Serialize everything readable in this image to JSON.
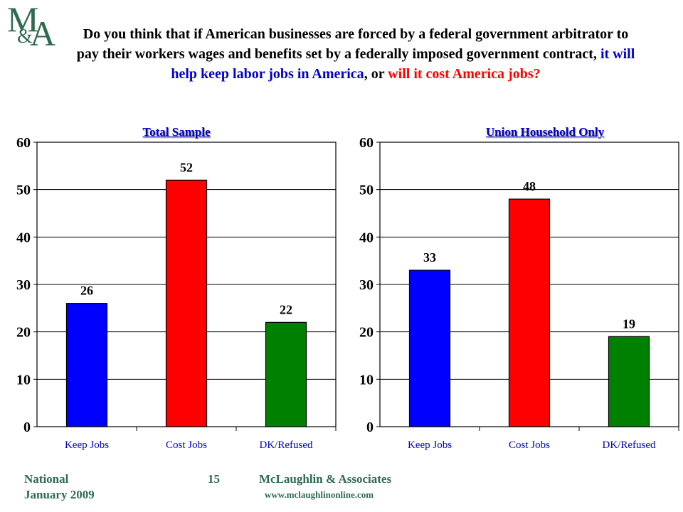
{
  "logo": {
    "m": "M",
    "amp": "&",
    "a": "A"
  },
  "question": {
    "part1": "Do you think that if American businesses are forced by a federal government arbitrator to pay their workers wages and benefits set by a federally imposed government contract, ",
    "part2": "it will help keep labor jobs in America",
    "part3": ", or ",
    "part4": "will it cost America jobs",
    "part5": "?"
  },
  "colors": {
    "keep": "#0000ff",
    "cost": "#ff0000",
    "dk": "#008000",
    "brand": "#2f6b4f",
    "title": "#0000cc"
  },
  "chart_data": [
    {
      "type": "bar",
      "title": "Total Sample",
      "categories": [
        "Keep Jobs",
        "Cost Jobs",
        "DK/Refused"
      ],
      "values": [
        26,
        52,
        22
      ],
      "ylim": [
        0,
        60
      ],
      "yticks": [
        0,
        10,
        20,
        30,
        40,
        50,
        60
      ],
      "grid": true
    },
    {
      "type": "bar",
      "title": "Union Household Only",
      "categories": [
        "Keep Jobs",
        "Cost Jobs",
        "DK/Refused"
      ],
      "values": [
        33,
        48,
        19
      ],
      "ylim": [
        0,
        60
      ],
      "yticks": [
        0,
        10,
        20,
        30,
        40,
        50,
        60
      ],
      "grid": true
    }
  ],
  "footer": {
    "region": "National",
    "date": "January 2009",
    "page": "15",
    "company": "McLaughlin & Associates",
    "website": "www.mclaughlinonline.com"
  }
}
